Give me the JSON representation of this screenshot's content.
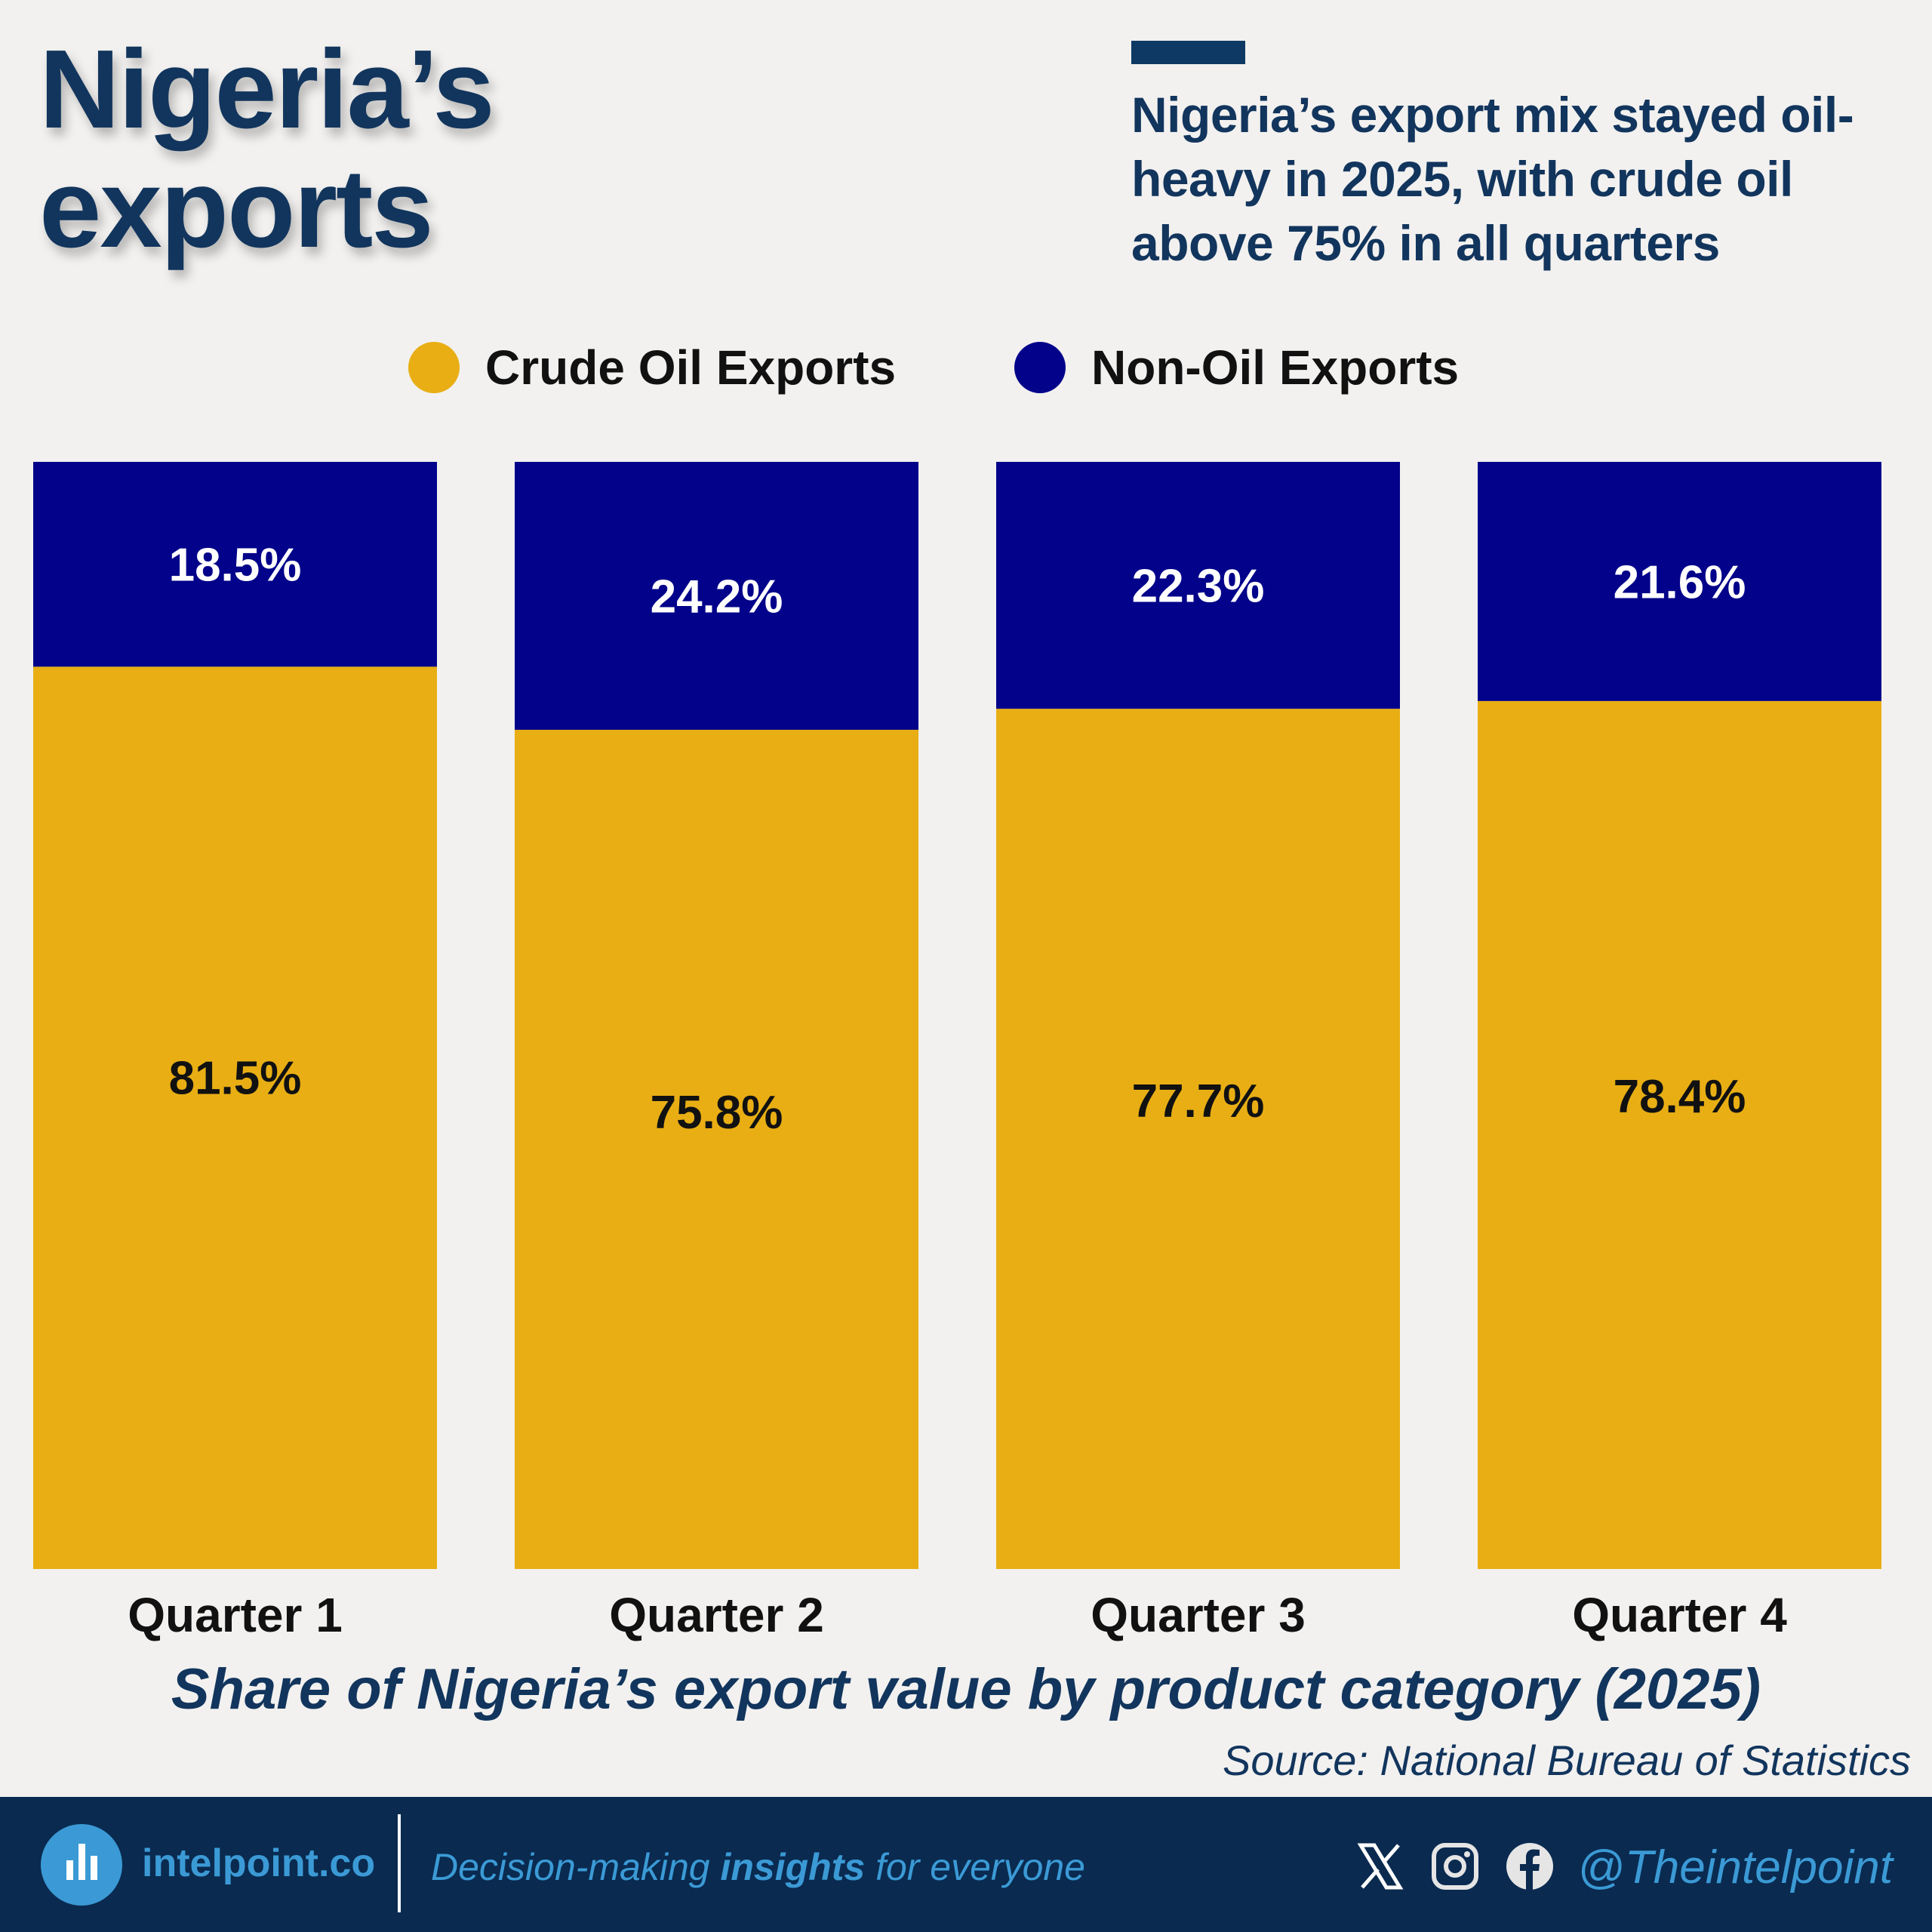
{
  "header": {
    "title_lines": [
      "Nigeria’s",
      "exports"
    ],
    "subtitle_lines": [
      "Nigeria’s export mix stayed oil-",
      "heavy in 2025, with crude oil",
      "above 75% in all quarters"
    ]
  },
  "colors": {
    "crude": "#e8ae14",
    "non_oil": "#02028a",
    "navy": "#12355d",
    "footer": "#0a2a50",
    "accent": "#3b9ad5"
  },
  "chart_data": {
    "type": "bar",
    "stacked": true,
    "title": "Share of Nigeria’s export value by product category (2025)",
    "categories": [
      "Quarter 1",
      "Quarter 2",
      "Quarter 3",
      "Quarter 4"
    ],
    "series": [
      {
        "name": "Crude Oil Exports",
        "values": [
          81.5,
          75.8,
          77.7,
          78.4
        ],
        "labels": [
          "81.5%",
          "75.8%",
          "77.7%",
          "78.4%"
        ]
      },
      {
        "name": "Non-Oil Exports",
        "values": [
          18.5,
          24.2,
          22.3,
          21.6
        ],
        "labels": [
          "18.5%",
          "24.2%",
          "22.3%",
          "21.6%"
        ]
      }
    ],
    "ylim": [
      0,
      100
    ],
    "legend": "top-center",
    "grid": false,
    "source": "Source: National Bureau of Statistics"
  },
  "footer": {
    "site": "intelpoint.co",
    "tagline_pre": "Decision-making ",
    "tagline_bold": "insights",
    "tagline_post": " for everyone",
    "handle": "@Theintelpoint"
  }
}
